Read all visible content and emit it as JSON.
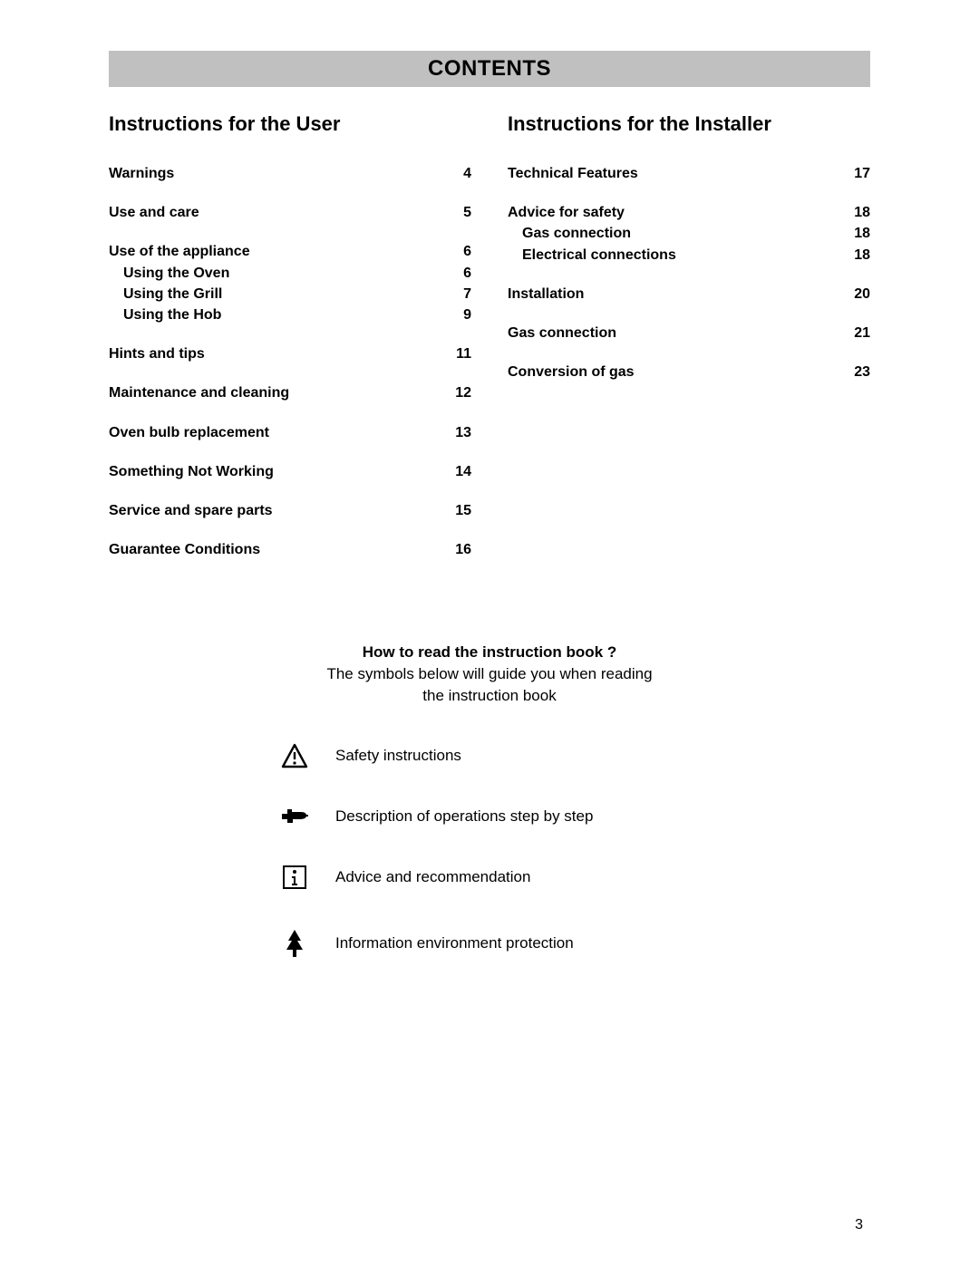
{
  "title": "CONTENTS",
  "colors": {
    "title_bg": "#c0c0c0",
    "text": "#000000",
    "page_bg": "#ffffff"
  },
  "left": {
    "heading": "Instructions for the User",
    "items": [
      {
        "label": "Warnings",
        "page": "4",
        "bold": true,
        "gap": true
      },
      {
        "label": "Use and care",
        "page": "5",
        "bold": true,
        "gap": true
      },
      {
        "label": "Use of the appliance",
        "page": "6",
        "bold": true
      },
      {
        "label": "Using the Oven",
        "page": "6",
        "sub": true
      },
      {
        "label": "Using the Grill",
        "page": "7",
        "sub": true
      },
      {
        "label": "Using the Hob",
        "page": "9",
        "sub": true,
        "gap": true
      },
      {
        "label": "Hints and tips",
        "page": "11",
        "bold": true,
        "gap": true
      },
      {
        "label": "Maintenance and cleaning",
        "page": "12",
        "bold": true,
        "gap": true
      },
      {
        "label": "Oven bulb replacement",
        "page": "13",
        "bold": true,
        "gap": true
      },
      {
        "label": "Something Not Working",
        "page": "14",
        "bold": true,
        "gap": true
      },
      {
        "label": "Service and spare parts",
        "page": "15",
        "bold": true,
        "gap": true
      },
      {
        "label": "Guarantee Conditions",
        "page": "16",
        "bold": true
      }
    ]
  },
  "right": {
    "heading": "Instructions for the Installer",
    "items": [
      {
        "label": "Technical Features",
        "page": "17",
        "bold": true,
        "gap": true
      },
      {
        "label": "Advice for safety",
        "page": "18",
        "bold": true
      },
      {
        "label": "Gas connection",
        "page": "18",
        "sub": true
      },
      {
        "label": "Electrical connections",
        "page": "18",
        "sub": true,
        "gap": true
      },
      {
        "label": "Installation",
        "page": "20",
        "bold": true,
        "gap": true
      },
      {
        "label": "Gas connection",
        "page": "21",
        "bold": true,
        "gap": true
      },
      {
        "label": "Conversion of gas",
        "page": "23",
        "bold": true
      }
    ]
  },
  "howto": {
    "question": "How to read the instruction book ?",
    "line1": "The symbols below will guide you when reading",
    "line2": "the instruction book"
  },
  "legend": [
    {
      "icon": "warning-triangle-icon",
      "text": "Safety instructions"
    },
    {
      "icon": "pointing-hand-icon",
      "text": "Description of operations step by step"
    },
    {
      "icon": "info-box-icon",
      "text": "Advice and recommendation"
    },
    {
      "icon": "tree-icon",
      "text": "Information environment protection"
    }
  ],
  "page_number": "3"
}
